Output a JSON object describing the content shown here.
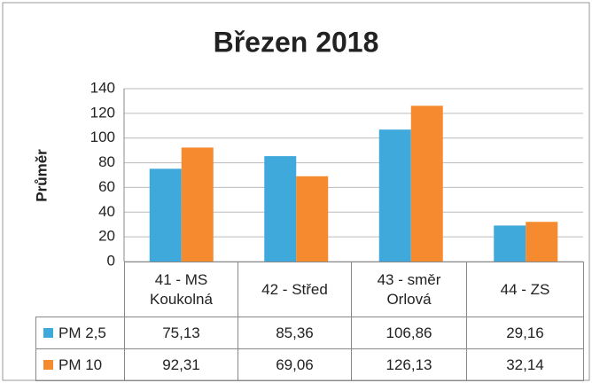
{
  "chart_data": {
    "type": "bar",
    "title": "Březen 2018",
    "y_label": "Průměr",
    "categories": [
      "41 - MS\nKoukolná",
      "42 - Střed",
      "43 - směr\nOrlová",
      "44 - ZS"
    ],
    "series": [
      {
        "name": "PM 2,5",
        "color": "#3fa9dc",
        "values": [
          75.13,
          85.36,
          106.86,
          29.16
        ],
        "value_labels": [
          "75,13",
          "85,36",
          "106,86",
          "29,16"
        ]
      },
      {
        "name": "PM 10",
        "color": "#f58a2e",
        "values": [
          92.31,
          69.06,
          126.13,
          32.14
        ],
        "value_labels": [
          "92,31",
          "69,06",
          "126,13",
          "32,14"
        ]
      }
    ],
    "ylim": [
      0,
      140
    ],
    "yticks": [
      0,
      20,
      40,
      60,
      80,
      100,
      120,
      140
    ],
    "grid": true
  }
}
